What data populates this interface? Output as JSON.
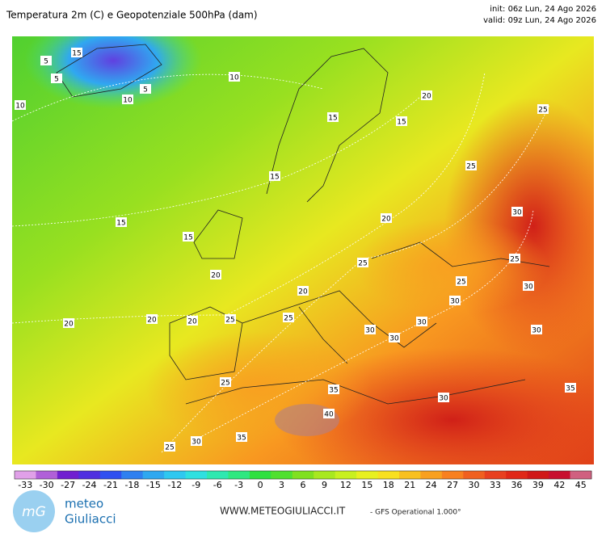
{
  "header": {
    "title": "Temperatura 2m (C) e Geopotenziale 500hPa (dam)",
    "init": "init: 06z Lun, 24 Ago 2026",
    "valid": "valid: 09z Lun, 24 Ago 2026"
  },
  "contour_labels": [
    "15",
    "5",
    "5",
    "5",
    "10",
    "10",
    "10",
    "15",
    "15",
    "20",
    "25",
    "25",
    "15",
    "15",
    "15",
    "20",
    "30",
    "25",
    "25",
    "20",
    "25",
    "30",
    "20",
    "30",
    "25",
    "25",
    "20",
    "20",
    "20",
    "30",
    "30",
    "30",
    "30",
    "25",
    "35",
    "35",
    "30",
    "40",
    "30",
    "25",
    "35"
  ],
  "colorbar": {
    "ticks": [
      -33,
      -30,
      -27,
      -24,
      -21,
      -18,
      -15,
      -12,
      -9,
      -6,
      -3,
      0,
      3,
      6,
      9,
      12,
      15,
      18,
      21,
      24,
      27,
      30,
      33,
      36,
      39,
      42,
      45
    ],
    "colors": [
      "#e0a0e8",
      "#b060d8",
      "#7020d0",
      "#5030e0",
      "#3050f0",
      "#3080f0",
      "#30a8f0",
      "#30c8f0",
      "#30e0e0",
      "#30e8b0",
      "#30e880",
      "#30e040",
      "#50e030",
      "#80e020",
      "#a8e820",
      "#c8f020",
      "#e8f020",
      "#f8e020",
      "#f8c020",
      "#f8a020",
      "#f88020",
      "#f06020",
      "#e84020",
      "#e02818",
      "#d01818",
      "#c81030",
      "#d06080"
    ]
  },
  "footer": {
    "logo": "mG",
    "brand1": "meteo",
    "brand2": "Giuliacci",
    "url": "WWW.METEOGIULIACCI.IT",
    "model": "- GFS Operational 1.000°"
  }
}
